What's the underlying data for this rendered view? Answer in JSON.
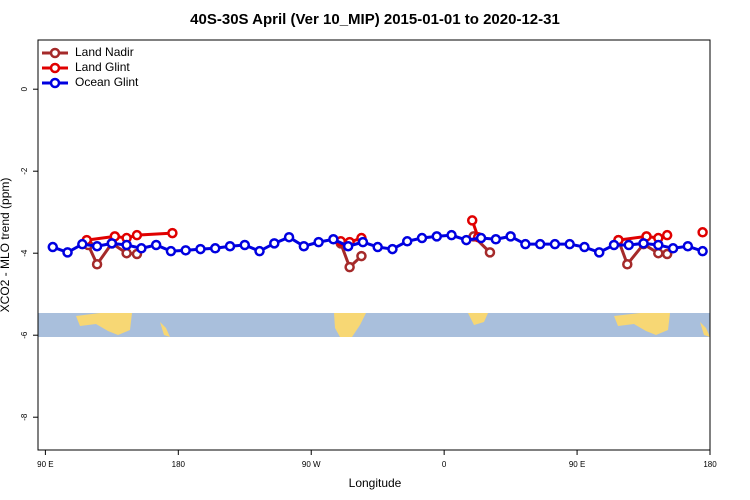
{
  "chart_data": {
    "type": "line",
    "title": "40S-30S April (Ver 10_MIP)   2015-01-01 to 2020-12-31",
    "x_label": "Longitude",
    "y_label": "XCO2 - MLO trend (ppm)",
    "xlim": [
      85,
      540
    ],
    "xticks": [
      {
        "value": 90,
        "label": "90 E"
      },
      180,
      {
        "value": 270,
        "label": "90 W"
      },
      {
        "value": 360,
        "label": "0"
      },
      {
        "value": 450,
        "label": "90 E"
      },
      {
        "value": 540,
        "label": "180"
      }
    ],
    "ylim": [
      -8.8,
      1.2
    ],
    "yticks": [
      0,
      -2,
      -4,
      -6,
      -8
    ],
    "legend": "top-left",
    "series": [
      {
        "name": "Land Nadir",
        "color": "#a52a2a",
        "x": [
          119,
          125,
          135,
          145,
          152,
          null,
          290,
          296,
          304,
          null,
          380,
          391,
          null,
          478,
          484,
          495,
          505,
          511
        ],
        "values": [
          -3.8,
          -4.27,
          -3.76,
          -4.0,
          -4.02,
          null,
          -3.76,
          -4.34,
          -4.07,
          null,
          -3.59,
          -3.98,
          null,
          -3.68,
          -4.27,
          -3.78,
          -4.0,
          -4.02
        ]
      },
      {
        "name": "Land Glint",
        "color": "#e00000",
        "x": [
          118,
          137,
          145,
          152,
          176,
          null,
          290,
          296,
          304,
          null,
          379,
          383,
          null,
          478,
          497,
          505,
          511,
          null,
          535
        ],
        "values": [
          -3.68,
          -3.59,
          -3.63,
          -3.56,
          -3.51,
          null,
          -3.71,
          -3.73,
          -3.63,
          null,
          -3.2,
          -3.61,
          null,
          -3.68,
          -3.59,
          -3.63,
          -3.56,
          null,
          -3.49
        ]
      },
      {
        "name": "Ocean Glint",
        "color": "#0000e0",
        "x": [
          95,
          105,
          115,
          125,
          135,
          145,
          155,
          165,
          175,
          185,
          195,
          205,
          215,
          225,
          235,
          245,
          255,
          265,
          275,
          285,
          295,
          305,
          315,
          325,
          335,
          345,
          355,
          365,
          375,
          385,
          395,
          405,
          415,
          425,
          435,
          445,
          455,
          465,
          475,
          485,
          495,
          505,
          515,
          525,
          535
        ],
        "values": [
          -3.85,
          -3.98,
          -3.78,
          -3.83,
          -3.76,
          -3.8,
          -3.88,
          -3.8,
          -3.95,
          -3.93,
          -3.9,
          -3.88,
          -3.83,
          -3.8,
          -3.95,
          -3.76,
          -3.61,
          -3.83,
          -3.73,
          -3.66,
          -3.83,
          -3.73,
          -3.85,
          -3.9,
          -3.71,
          -3.63,
          -3.59,
          -3.56,
          -3.68,
          -3.63,
          -3.66,
          -3.59,
          -3.78,
          -3.78,
          -3.78,
          -3.78,
          -3.85,
          -3.98,
          -3.8,
          -3.8,
          -3.76,
          -3.8,
          -3.88,
          -3.83,
          -3.95
        ]
      }
    ]
  }
}
